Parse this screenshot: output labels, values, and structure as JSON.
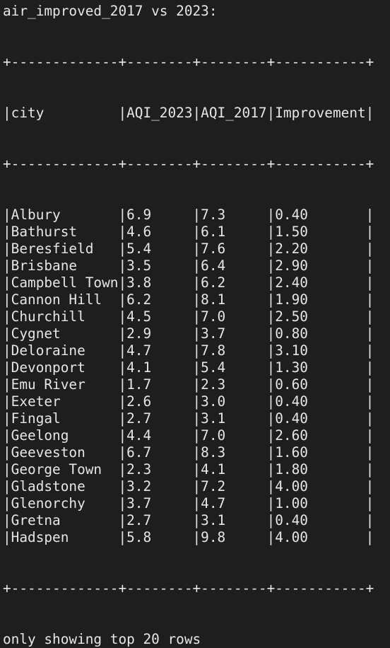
{
  "title": "air_improved_2017 vs 2023:",
  "border_line": "+-------------+--------+--------+-----------+",
  "header_row": "|city         |AQI_2023|AQI_2017|Improvement|",
  "rows": [
    "|Albury       |6.9     |7.3     |0.40       |",
    "|Bathurst     |4.6     |6.1     |1.50       |",
    "|Beresfield   |5.4     |7.6     |2.20       |",
    "|Brisbane     |3.5     |6.4     |2.90       |",
    "|Campbell Town|3.8     |6.2     |2.40       |",
    "|Cannon Hill  |6.2     |8.1     |1.90       |",
    "|Churchill    |4.5     |7.0     |2.50       |",
    "|Cygnet       |2.9     |3.7     |0.80       |",
    "|Deloraine    |4.7     |7.8     |3.10       |",
    "|Devonport    |4.1     |5.4     |1.30       |",
    "|Emu River    |1.7     |2.3     |0.60       |",
    "|Exeter       |2.6     |3.0     |0.40       |",
    "|Fingal       |2.7     |3.1     |0.40       |",
    "|Geelong      |4.4     |7.0     |2.60       |",
    "|Geeveston    |6.7     |8.3     |1.60       |",
    "|George Town  |2.3     |4.1     |1.80       |",
    "|Gladstone    |3.2     |7.2     |4.00       |",
    "|Glenorchy    |3.7     |4.7     |1.00       |",
    "|Gretna       |2.7     |3.1     |0.40       |",
    "|Hadspen      |5.8     |9.8     |4.00       |"
  ],
  "footer": "only showing top 20 rows"
}
